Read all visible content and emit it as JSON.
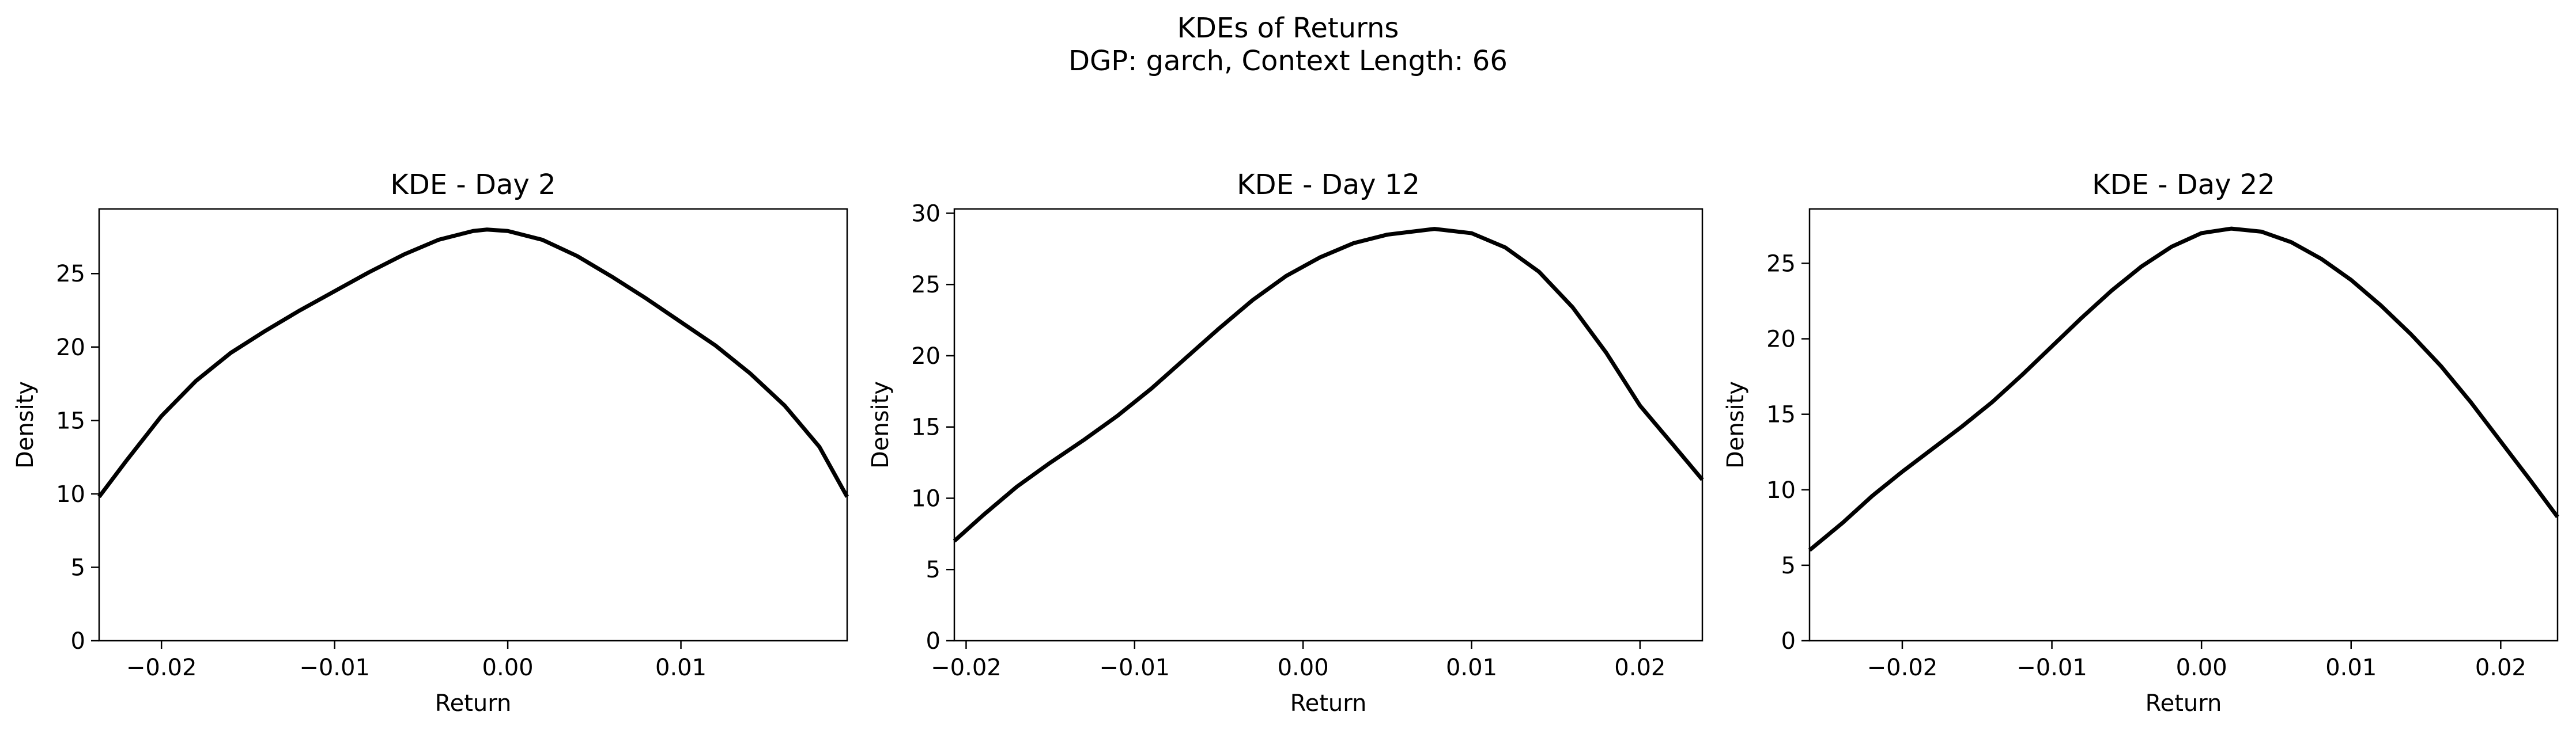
{
  "figure": {
    "title_line1": "KDEs of Returns",
    "title_line2": "DGP: garch, Context Length: 66"
  },
  "colors": {
    "line": "#000000",
    "axes": "#000000",
    "background": "#ffffff"
  },
  "chart_data": [
    {
      "type": "line",
      "title": "KDE - Day 2",
      "xlabel": "Return",
      "ylabel": "Density",
      "xlim": [
        -0.0236,
        0.0196
      ],
      "ylim": [
        0,
        29.4
      ],
      "grid": false,
      "legend": "none",
      "xticks": [
        -0.02,
        -0.01,
        0.0,
        0.01
      ],
      "xtick_labels": [
        "−0.02",
        "−0.01",
        "0.00",
        "0.01"
      ],
      "yticks": [
        0,
        5,
        10,
        15,
        20,
        25
      ],
      "ytick_labels": [
        "0",
        "5",
        "10",
        "15",
        "20",
        "25"
      ],
      "series": [
        {
          "x": [
            -0.0236,
            -0.022,
            -0.02,
            -0.018,
            -0.016,
            -0.014,
            -0.012,
            -0.01,
            -0.008,
            -0.006,
            -0.004,
            -0.002,
            -0.0012,
            0.0,
            0.002,
            0.004,
            0.006,
            0.008,
            0.01,
            0.012,
            0.014,
            0.016,
            0.018,
            0.0196
          ],
          "y": [
            9.8,
            12.3,
            15.3,
            17.7,
            19.6,
            21.1,
            22.5,
            23.8,
            25.1,
            26.3,
            27.3,
            27.9,
            28.0,
            27.9,
            27.3,
            26.2,
            24.8,
            23.3,
            21.7,
            20.1,
            18.2,
            16.0,
            13.2,
            9.8
          ]
        }
      ]
    },
    {
      "type": "line",
      "title": "KDE - Day 12",
      "xlabel": "Return",
      "ylabel": "Density",
      "xlim": [
        -0.0207,
        0.0237
      ],
      "ylim": [
        0,
        30.3
      ],
      "grid": false,
      "legend": "none",
      "xticks": [
        -0.02,
        -0.01,
        0.0,
        0.01,
        0.02
      ],
      "xtick_labels": [
        "−0.02",
        "−0.01",
        "0.00",
        "0.01",
        "0.02"
      ],
      "yticks": [
        0,
        5,
        10,
        15,
        20,
        25,
        30
      ],
      "ytick_labels": [
        "0",
        "5",
        "10",
        "15",
        "20",
        "25",
        "30"
      ],
      "series": [
        {
          "x": [
            -0.0207,
            -0.019,
            -0.017,
            -0.015,
            -0.013,
            -0.011,
            -0.009,
            -0.007,
            -0.005,
            -0.003,
            -0.001,
            0.001,
            0.003,
            0.005,
            0.0078,
            0.01,
            0.012,
            0.014,
            0.016,
            0.018,
            0.02,
            0.022,
            0.0237
          ],
          "y": [
            7.0,
            8.8,
            10.8,
            12.5,
            14.1,
            15.8,
            17.7,
            19.8,
            21.9,
            23.9,
            25.6,
            26.9,
            27.9,
            28.5,
            28.9,
            28.6,
            27.6,
            25.9,
            23.4,
            20.2,
            16.5,
            13.7,
            11.3
          ]
        }
      ]
    },
    {
      "type": "line",
      "title": "KDE - Day 22",
      "xlabel": "Return",
      "ylabel": "Density",
      "xlim": [
        -0.0262,
        0.0238
      ],
      "ylim": [
        0,
        28.6
      ],
      "grid": false,
      "legend": "none",
      "xticks": [
        -0.02,
        -0.01,
        0.0,
        0.01,
        0.02
      ],
      "xtick_labels": [
        "−0.02",
        "−0.01",
        "0.00",
        "0.01",
        "0.02"
      ],
      "yticks": [
        0,
        5,
        10,
        15,
        20,
        25
      ],
      "ytick_labels": [
        "0",
        "5",
        "10",
        "15",
        "20",
        "25"
      ],
      "series": [
        {
          "x": [
            -0.0262,
            -0.024,
            -0.022,
            -0.02,
            -0.018,
            -0.016,
            -0.014,
            -0.012,
            -0.01,
            -0.008,
            -0.006,
            -0.004,
            -0.002,
            0.0,
            0.002,
            0.004,
            0.006,
            0.008,
            0.01,
            0.012,
            0.014,
            0.016,
            0.018,
            0.02,
            0.022,
            0.0238
          ],
          "y": [
            6.0,
            7.8,
            9.6,
            11.2,
            12.7,
            14.2,
            15.8,
            17.6,
            19.5,
            21.4,
            23.2,
            24.8,
            26.1,
            27.0,
            27.3,
            27.1,
            26.4,
            25.3,
            23.9,
            22.2,
            20.3,
            18.2,
            15.8,
            13.2,
            10.6,
            8.2
          ]
        }
      ]
    }
  ]
}
